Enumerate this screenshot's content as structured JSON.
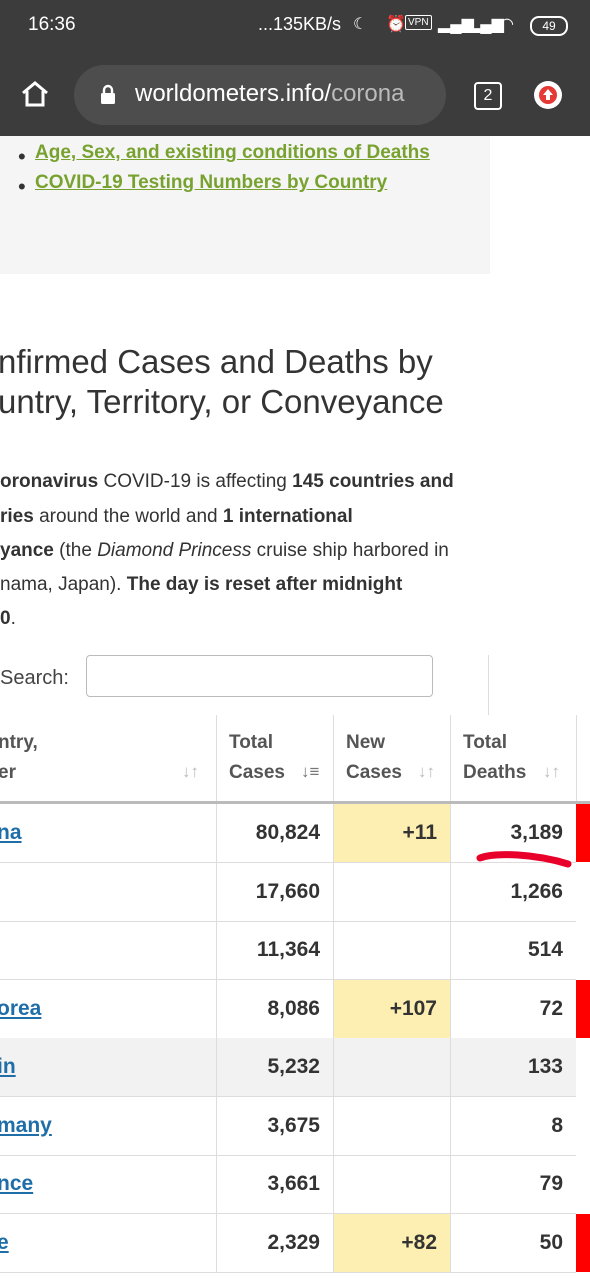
{
  "status_bar": {
    "time": "16:36",
    "net_speed": "...135KB/s",
    "battery": "49",
    "vpn": "VPN"
  },
  "browser": {
    "url_domain": "worldometers.info/",
    "url_path": "corona",
    "tab_count": "2"
  },
  "links": [
    "Age, Sex, and existing conditions of Deaths",
    "COVID-19 Testing Numbers by Country"
  ],
  "heading": {
    "line1": "nfirmed Cases and Deaths by",
    "line2": "untry, Territory, or Conveyance"
  },
  "paragraph": {
    "l1_a": "oronavirus",
    "l1_b": " COVID-19 is affecting ",
    "l1_c": "145 countries and",
    "l2_a": "ries",
    "l2_b": " around the world and ",
    "l2_c": "1 international",
    "l3_a": "yance",
    "l3_b": " (the ",
    "l3_c": "Diamond Princess",
    "l3_d": " cruise ship harbored in",
    "l4_a": "nama, Japan). ",
    "l4_b": "The day is reset after midnight",
    "l5_a": "0",
    "l5_b": "."
  },
  "search": {
    "label": "Search:",
    "value": ""
  },
  "table": {
    "headers": {
      "country_l1": "ntry,",
      "country_l2": "er",
      "total_cases_l1": "Total",
      "total_cases_l2": "Cases",
      "new_cases_l1": "New",
      "new_cases_l2": "Cases",
      "total_deaths_l1": "Total",
      "total_deaths_l2": "Deaths"
    },
    "rows": [
      {
        "country": "na",
        "total_cases": "80,824",
        "new_cases": "+11",
        "total_deaths": "3,189",
        "new_highlight": true,
        "red": true,
        "gray": false
      },
      {
        "country": "",
        "total_cases": "17,660",
        "new_cases": "",
        "total_deaths": "1,266",
        "new_highlight": false,
        "red": false,
        "gray": false
      },
      {
        "country": "",
        "total_cases": "11,364",
        "new_cases": "",
        "total_deaths": "514",
        "new_highlight": false,
        "red": false,
        "gray": false
      },
      {
        "country": "orea",
        "total_cases": "8,086",
        "new_cases": "+107",
        "total_deaths": "72",
        "new_highlight": true,
        "red": true,
        "gray": false
      },
      {
        "country": "in",
        "total_cases": "5,232",
        "new_cases": "",
        "total_deaths": "133",
        "new_highlight": false,
        "red": false,
        "gray": true
      },
      {
        "country": "many",
        "total_cases": "3,675",
        "new_cases": "",
        "total_deaths": "8",
        "new_highlight": false,
        "red": false,
        "gray": false
      },
      {
        "country": "nce",
        "total_cases": "3,661",
        "new_cases": "",
        "total_deaths": "79",
        "new_highlight": false,
        "red": false,
        "gray": false
      },
      {
        "country": "e",
        "total_cases": "2,329",
        "new_cases": "+82",
        "total_deaths": "50",
        "new_highlight": true,
        "red": true,
        "gray": false
      }
    ]
  },
  "colors": {
    "link_green": "#78a22f",
    "country_blue": "#1f6ea8",
    "highlight_yellow": "#fcefb1",
    "red": "#ff0000"
  }
}
